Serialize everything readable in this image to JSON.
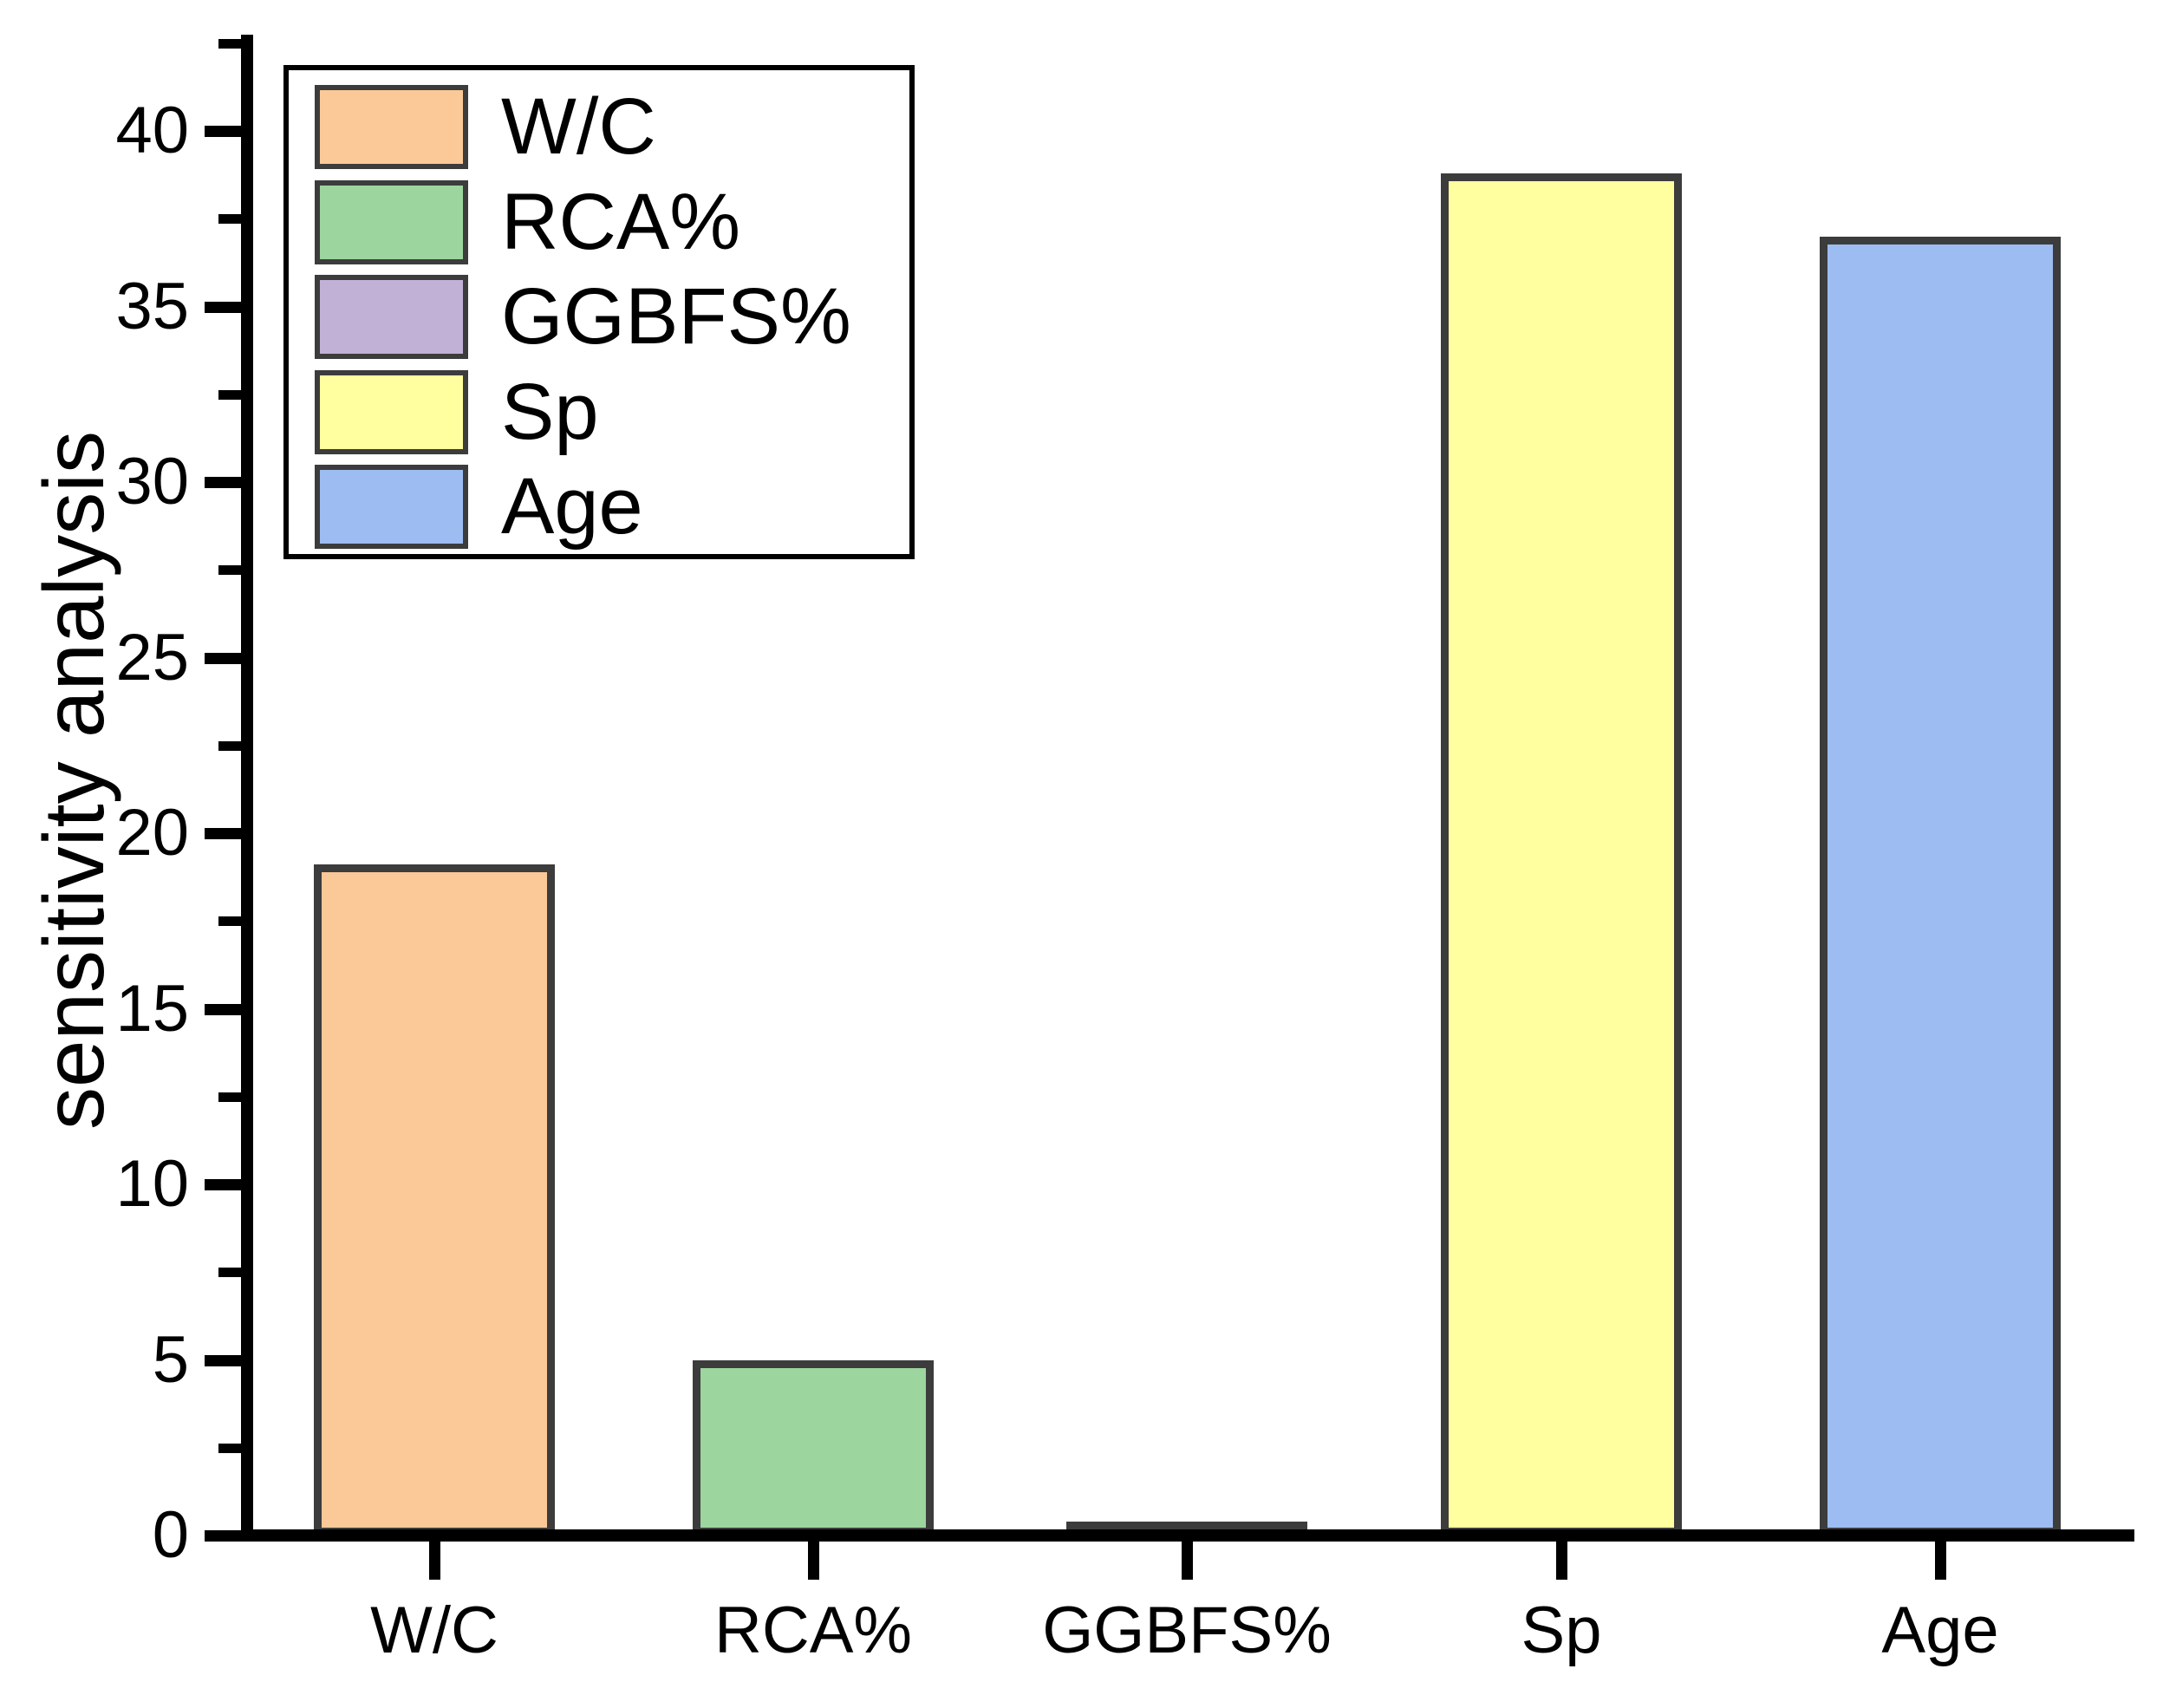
{
  "figure": {
    "background_color": "#ffffff",
    "axis_color": "#000000"
  },
  "chart_data": {
    "type": "bar",
    "title": "",
    "xlabel": "",
    "ylabel": "sensitivity analysis",
    "categories": [
      "W/C",
      "RCA%",
      "GGBFS%",
      "Sp",
      "Age"
    ],
    "values": [
      19.1,
      5.0,
      0.4,
      38.8,
      37.0
    ],
    "bar_colors": [
      "#FBC997",
      "#9CD59E",
      "#C1B1D6",
      "#FFFF9F",
      "#9CBCF2"
    ],
    "bar_border_color": "#3C3C3C",
    "ylim": [
      0,
      42.5
    ],
    "yticks": [
      0,
      5,
      10,
      15,
      20,
      25,
      30,
      35,
      40
    ],
    "ytick_labels": [
      "0",
      "5",
      "10",
      "15",
      "20",
      "25",
      "30",
      "35",
      "40"
    ],
    "ytick_minor_step": 2.5,
    "grid": false,
    "legend": {
      "position": "top-left",
      "items": [
        {
          "label": "W/C",
          "color": "#FBC997"
        },
        {
          "label": "RCA%",
          "color": "#9CD59E"
        },
        {
          "label": "GGBFS%",
          "color": "#C1B1D6"
        },
        {
          "label": "Sp",
          "color": "#FFFF9F"
        },
        {
          "label": "Age",
          "color": "#9CBCF2"
        }
      ]
    }
  }
}
